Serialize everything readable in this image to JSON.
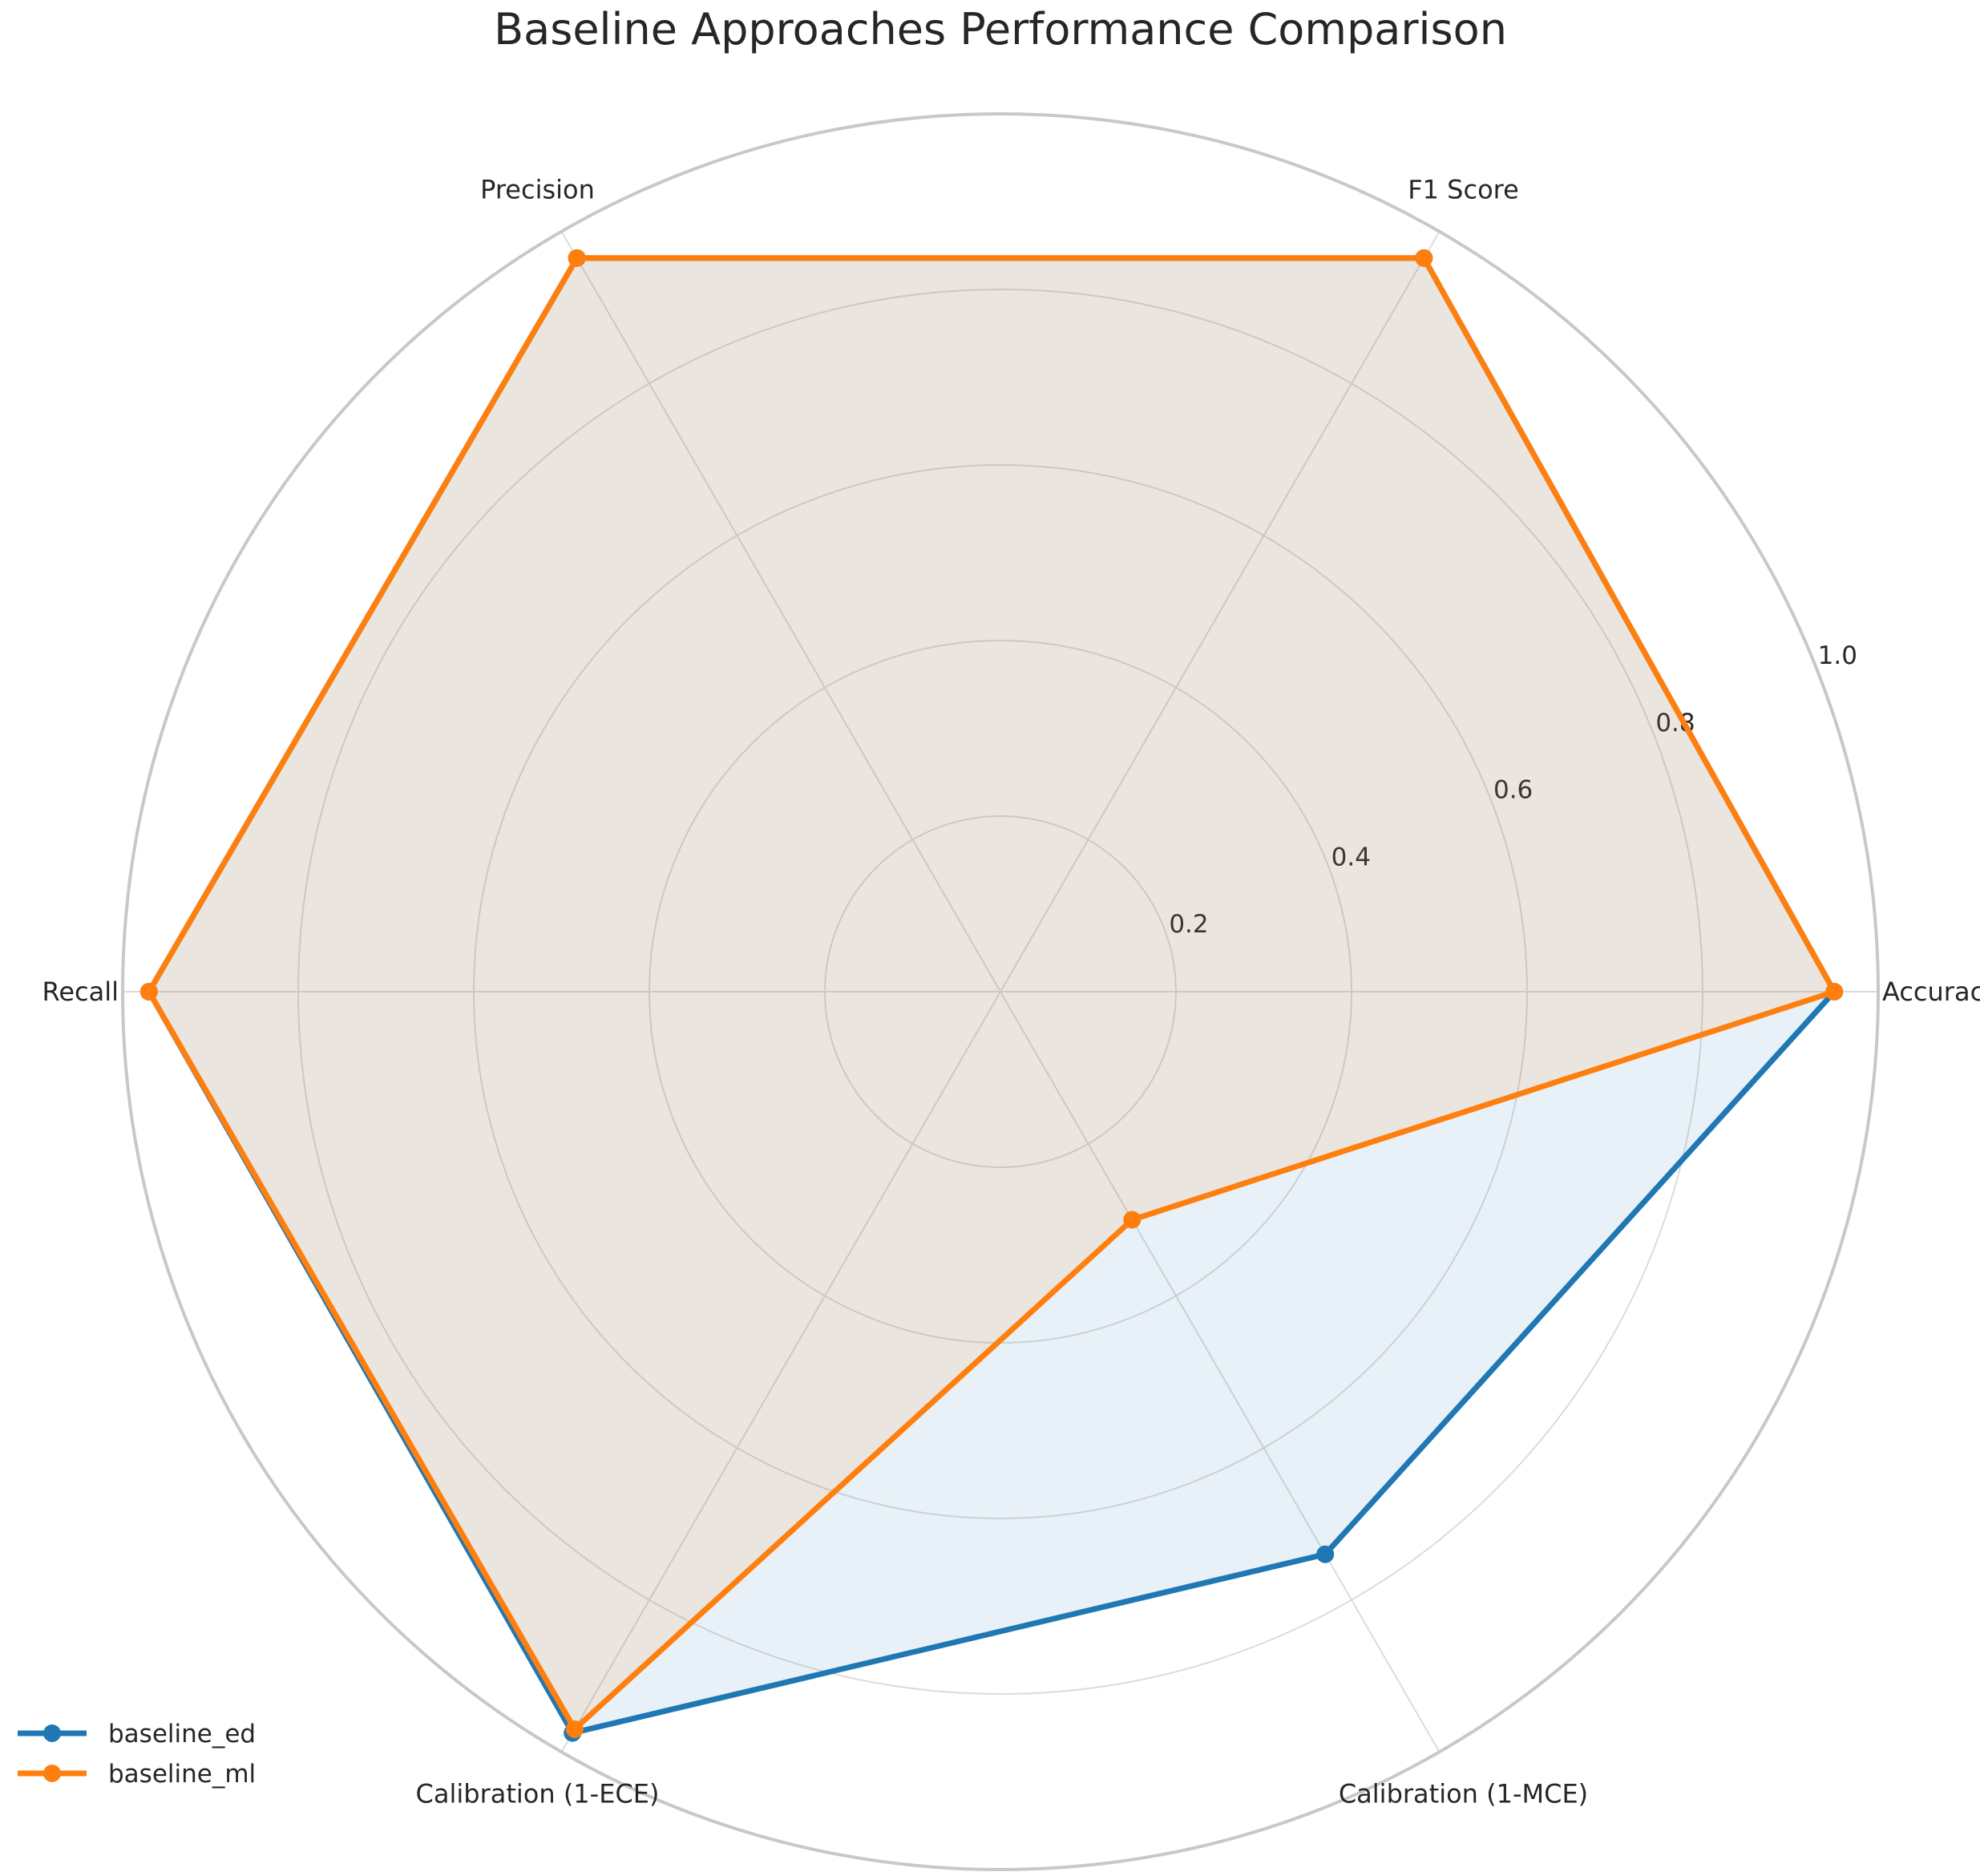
{
  "chart_data": {
    "type": "radar",
    "title": "Baseline Approaches Performance Comparison",
    "axes": [
      "Accuracy",
      "F1 Score",
      "Precision",
      "Recall",
      "Calibration (1-ECE)",
      "Calibration (1-MCE)"
    ],
    "rlim": [
      0,
      1.0
    ],
    "rticks": [
      0.2,
      0.4,
      0.6,
      0.8,
      1.0
    ],
    "rtick_labels": [
      "0.2",
      "0.4",
      "0.6",
      "0.8",
      "1.0"
    ],
    "grid": true,
    "legend_position": "lower-left",
    "series": [
      {
        "name": "baseline_ed",
        "color": "#1f77b4",
        "values": [
          0.95,
          0.965,
          0.965,
          0.97,
          0.975,
          0.74
        ]
      },
      {
        "name": "baseline_ml",
        "color": "#ff7f0e",
        "values": [
          0.95,
          0.965,
          0.965,
          0.97,
          0.97,
          0.3
        ]
      }
    ]
  }
}
